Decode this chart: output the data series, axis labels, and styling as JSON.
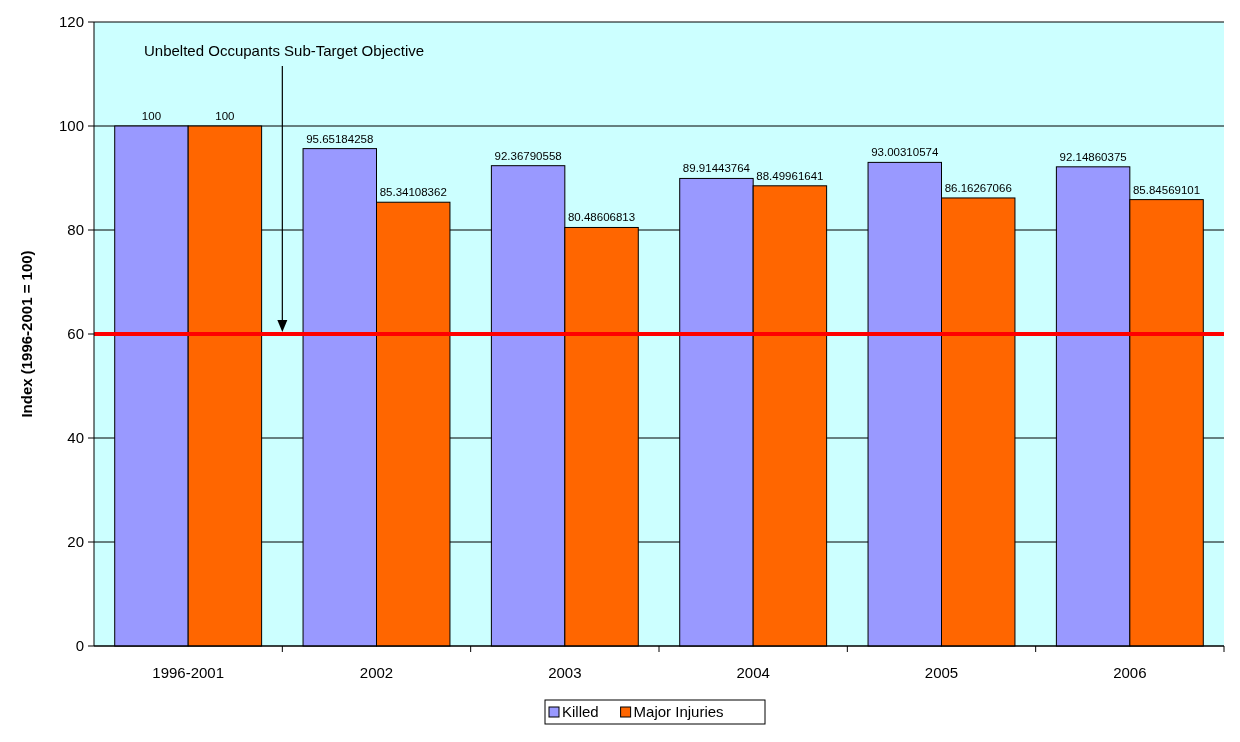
{
  "chart_data": {
    "type": "bar",
    "ylabel": "Index (1996-2001 = 100)",
    "categories": [
      "1996-2001",
      "2002",
      "2003",
      "2004",
      "2005",
      "2006"
    ],
    "series": [
      {
        "name": "Killed",
        "color": "#9999ff",
        "values": [
          100,
          95.65184258,
          92.36790558,
          89.91443764,
          93.00310574,
          92.14860375
        ]
      },
      {
        "name": "Major Injuries",
        "color": "#ff6600",
        "values": [
          100,
          85.34108362,
          80.48606813,
          88.49961641,
          86.16267066,
          85.84569101
        ]
      }
    ],
    "ylim": [
      0,
      120
    ],
    "yticks": [
      0,
      20,
      40,
      60,
      80,
      100,
      120
    ],
    "grid": "y",
    "legend": "bottom",
    "data_labels": true,
    "ref_lines": [
      {
        "axis": "y",
        "value": 60,
        "color": "#ff0000"
      }
    ],
    "annotations": [
      "Unbelted Occupants Sub-Target Objective"
    ]
  }
}
